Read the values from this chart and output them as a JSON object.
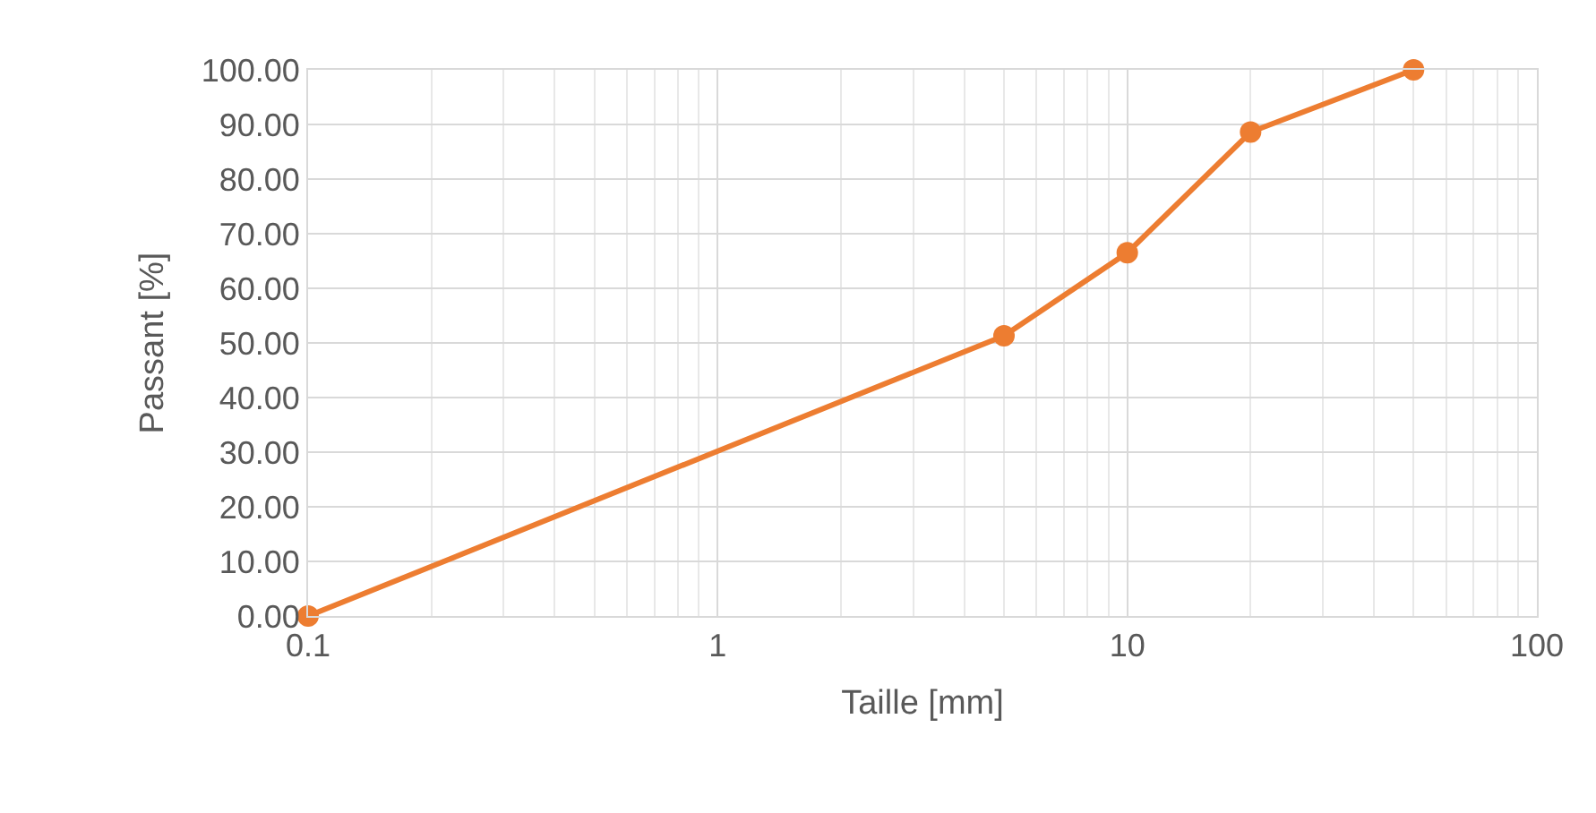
{
  "chart_data": {
    "type": "line",
    "xlabel": "Taille [mm]",
    "ylabel": "Passant [%]",
    "x": [
      0.1,
      5,
      10,
      20,
      50
    ],
    "series": [
      {
        "color": "#ed7d31",
        "values": [
          0.0,
          51.3,
          66.5,
          88.6,
          100.0
        ]
      }
    ],
    "log": "x",
    "xlim": [
      0.1,
      100
    ],
    "xticks": [
      0.1,
      1,
      10,
      100
    ],
    "ylim": [
      0,
      100
    ],
    "yticks": [
      {
        "value": 0,
        "label": "0.00"
      },
      {
        "value": 10,
        "label": "10.00"
      },
      {
        "value": 20,
        "label": "20.00"
      },
      {
        "value": 30,
        "label": "30.00"
      },
      {
        "value": 40,
        "label": "40.00"
      },
      {
        "value": 50,
        "label": "50.00"
      },
      {
        "value": 60,
        "label": "60.00"
      },
      {
        "value": 70,
        "label": "70.00"
      },
      {
        "value": 80,
        "label": "80.00"
      },
      {
        "value": 90,
        "label": "90.00"
      },
      {
        "value": 100,
        "label": "100.00"
      }
    ],
    "grid": true,
    "marker": "circle",
    "line_style": "solid",
    "legend": false
  }
}
